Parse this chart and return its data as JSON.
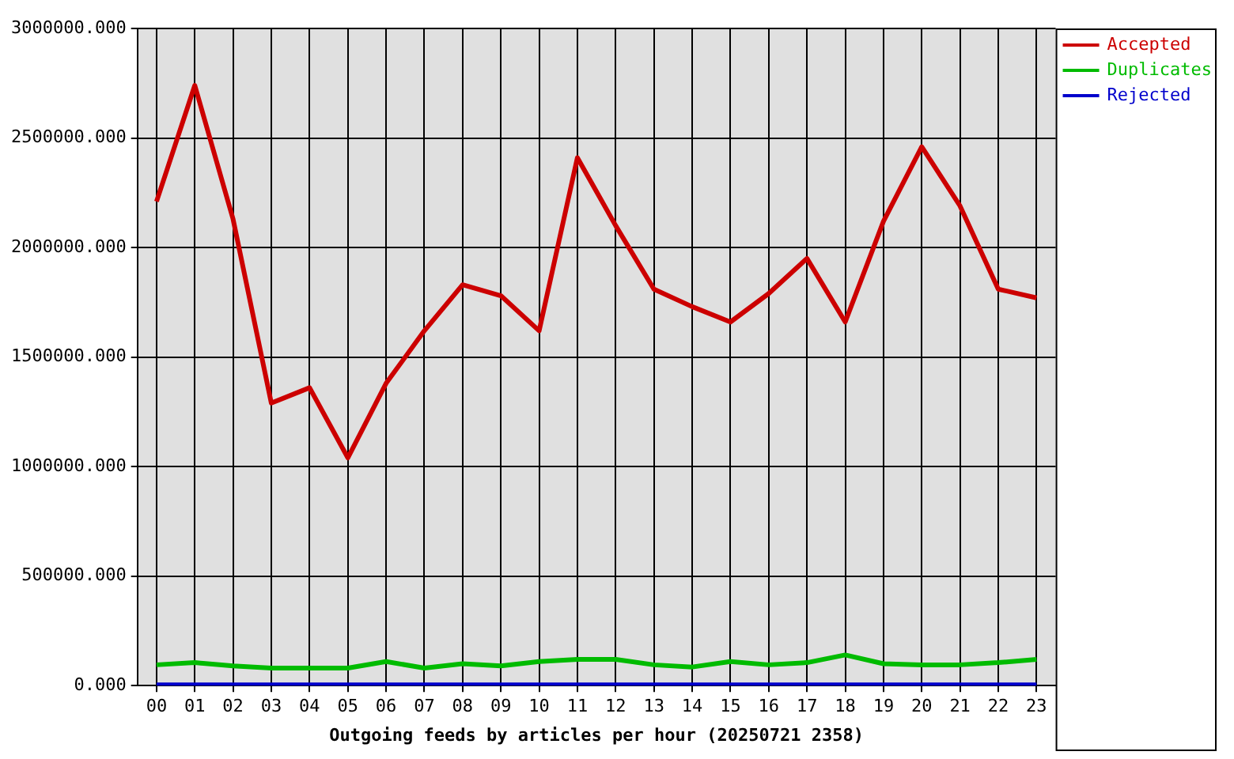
{
  "chart_data": {
    "type": "line",
    "xlabel": "Outgoing feeds by articles per hour (20250721 2358)",
    "categories": [
      "00",
      "01",
      "02",
      "03",
      "04",
      "05",
      "06",
      "07",
      "08",
      "09",
      "10",
      "11",
      "12",
      "13",
      "14",
      "15",
      "16",
      "17",
      "18",
      "19",
      "20",
      "21",
      "22",
      "23"
    ],
    "series": [
      {
        "name": "Accepted",
        "color": "#cc0000",
        "values": [
          2210000,
          2740000,
          2130000,
          1290000,
          1360000,
          1040000,
          1380000,
          1620000,
          1830000,
          1780000,
          1620000,
          2410000,
          2100000,
          1810000,
          1730000,
          1660000,
          1790000,
          1950000,
          1660000,
          2120000,
          2460000,
          2190000,
          1810000,
          1770000
        ]
      },
      {
        "name": "Duplicates",
        "color": "#00bb00",
        "values": [
          95000,
          105000,
          90000,
          80000,
          80000,
          80000,
          110000,
          80000,
          100000,
          90000,
          110000,
          120000,
          120000,
          95000,
          85000,
          110000,
          95000,
          105000,
          140000,
          100000,
          95000,
          95000,
          105000,
          120000
        ]
      },
      {
        "name": "Rejected",
        "color": "#0000cc",
        "values": [
          3000,
          3000,
          3000,
          3000,
          3000,
          3000,
          3000,
          3000,
          3000,
          3000,
          3000,
          3000,
          3000,
          3000,
          3000,
          3000,
          3000,
          3000,
          3000,
          3000,
          3000,
          3000,
          3000,
          3000
        ]
      }
    ],
    "ylim": [
      0,
      3000000
    ],
    "yticks": [
      {
        "value": 0,
        "label": "0.000"
      },
      {
        "value": 500000,
        "label": "500000.000"
      },
      {
        "value": 1000000,
        "label": "1000000.000"
      },
      {
        "value": 1500000,
        "label": "1500000.000"
      },
      {
        "value": 2000000,
        "label": "2000000.000"
      },
      {
        "value": 2500000,
        "label": "2500000.000"
      },
      {
        "value": 3000000,
        "label": "3000000.000"
      }
    ],
    "grid": true,
    "legend": "top right",
    "marker": "none",
    "line_style": "solid"
  }
}
